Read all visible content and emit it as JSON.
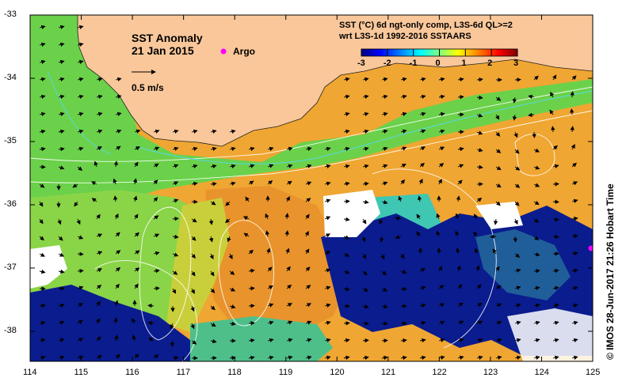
{
  "title": "SST Anomaly",
  "date": "21 Jan 2015",
  "legend_argo": "Argo",
  "vector_scale": "0.5 m/s",
  "header_line1": "SST (°C) 6d ngt-only comp, L3S-6d QL>=2",
  "header_line2": "wrt L3S-1d 1992-2016 SSTAARS",
  "colorbar": {
    "ticks": [
      "-3",
      "-2",
      "-1",
      "0",
      "1",
      "2",
      "3"
    ],
    "colors": [
      "#00007f",
      "#0000ff",
      "#007fff",
      "#00ffff",
      "#7fff7f",
      "#ffff00",
      "#ff7f00",
      "#ff0000",
      "#7f0000"
    ]
  },
  "axes": {
    "x_ticks": [
      "114",
      "115",
      "116",
      "117",
      "118",
      "119",
      "120",
      "121",
      "122",
      "123",
      "124",
      "125"
    ],
    "y_ticks": [
      "-33",
      "-34",
      "-35",
      "-36",
      "-37",
      "-38"
    ]
  },
  "credit": "©  IMOS 28-Jun-2017 21:26 Hobart Time",
  "colors": {
    "land": "#f9c79a",
    "warm": "#f3a52a",
    "cold": "#00138a",
    "green": "#5ad24a",
    "cyan": "#3ec9c0",
    "no_data": "#ffffff",
    "argo": "#ff00ff"
  }
}
